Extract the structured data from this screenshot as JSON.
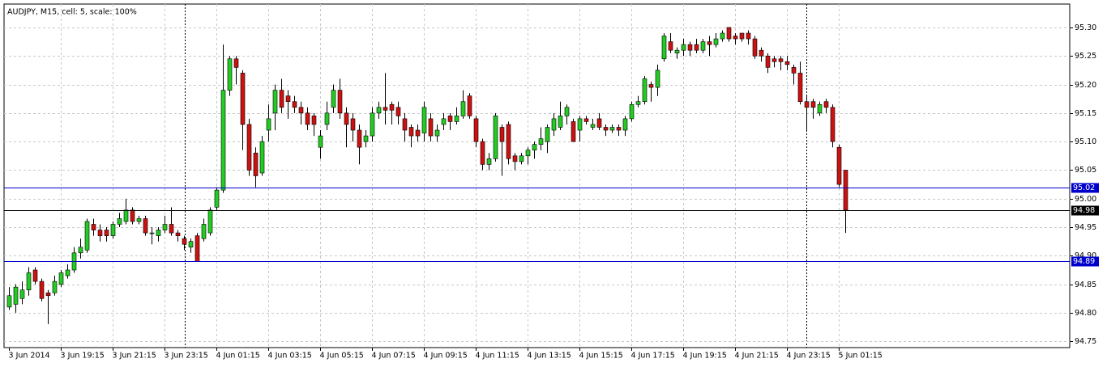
{
  "chart_data": {
    "type": "candlestick",
    "title": "AUDJPY, M15, cell: 5, scale: 100%",
    "categories": [
      "3 Jun 2014",
      null,
      null,
      null,
      null,
      null,
      null,
      null,
      "3 Jun 19:15",
      null,
      null,
      null,
      null,
      null,
      null,
      null,
      "3 Jun 21:15",
      null,
      null,
      null,
      null,
      null,
      null,
      null,
      "3 Jun 23:15",
      null,
      null,
      null,
      null,
      null,
      null,
      null,
      "4 Jun 01:15",
      null,
      null,
      null,
      null,
      null,
      null,
      null,
      "4 Jun 03:15",
      null,
      null,
      null,
      null,
      null,
      null,
      null,
      "4 Jun 05:15",
      null,
      null,
      null,
      null,
      null,
      null,
      null,
      "4 Jun 07:15",
      null,
      null,
      null,
      null,
      null,
      null,
      null,
      "4 Jun 09:15",
      null,
      null,
      null,
      null,
      null,
      null,
      null,
      "4 Jun 11:15",
      null,
      null,
      null,
      null,
      null,
      null,
      null,
      "4 Jun 13:15",
      null,
      null,
      null,
      null,
      null,
      null,
      null,
      "4 Jun 15:15",
      null,
      null,
      null,
      null,
      null,
      null,
      null,
      "4 Jun 17:15",
      null,
      null,
      null,
      null,
      null,
      null,
      null,
      "4 Jun 19:15",
      null,
      null,
      null,
      null,
      null,
      null,
      null,
      "4 Jun 21:15",
      null,
      null,
      null,
      null,
      null,
      null,
      null,
      "4 Jun 23:15",
      null,
      null,
      null,
      null,
      null,
      null,
      null,
      "5 Jun 01:15",
      null
    ],
    "open": [
      94.81,
      94.815,
      94.825,
      94.84,
      94.875,
      94.855,
      94.835,
      94.835,
      94.85,
      94.865,
      94.875,
      94.905,
      94.91,
      94.955,
      94.945,
      94.945,
      94.935,
      94.955,
      94.96,
      94.98,
      94.96,
      94.965,
      94.94,
      94.935,
      94.945,
      94.955,
      94.94,
      94.93,
      94.915,
      94.935,
      94.93,
      94.94,
      94.985,
      95.015,
      95.19,
      95.245,
      95.22,
      95.13,
      95.08,
      95.045,
      95.12,
      95.15,
      95.19,
      95.18,
      95.17,
      95.16,
      95.15,
      95.145,
      95.09,
      95.13,
      95.16,
      95.19,
      95.15,
      95.14,
      95.12,
      95.1,
      95.11,
      95.15,
      95.16,
      95.165,
      95.16,
      95.14,
      95.125,
      95.12,
      95.115,
      95.14,
      95.11,
      95.13,
      95.145,
      95.135,
      95.145,
      95.18,
      95.14,
      95.1,
      95.06,
      95.07,
      95.125,
      95.13,
      95.075,
      95.065,
      95.075,
      95.085,
      95.095,
      95.1,
      95.12,
      95.125,
      95.145,
      95.135,
      95.12,
      95.14,
      95.125,
      95.14,
      95.125,
      95.12,
      95.125,
      95.12,
      95.14,
      95.165,
      95.17,
      95.2,
      95.195,
      95.245,
      95.275,
      95.255,
      95.26,
      95.27,
      95.27,
      95.26,
      95.275,
      95.27,
      95.28,
      95.3,
      95.285,
      95.29,
      95.29,
      95.28,
      95.26,
      95.25,
      95.245,
      95.245,
      95.24,
      95.23,
      95.22,
      95.17,
      95.17,
      95.15,
      95.17,
      95.16,
      95.09,
      95.05
    ],
    "high": [
      94.845,
      94.85,
      94.855,
      94.88,
      94.88,
      94.86,
      94.84,
      94.865,
      94.875,
      94.885,
      94.915,
      94.93,
      94.965,
      94.965,
      94.955,
      94.95,
      94.96,
      94.975,
      95.0,
      94.985,
      94.97,
      94.97,
      94.95,
      94.95,
      94.97,
      94.985,
      94.945,
      94.935,
      94.93,
      94.94,
      94.965,
      94.985,
      95.02,
      95.27,
      95.25,
      95.25,
      95.225,
      95.14,
      95.09,
      95.11,
      95.165,
      95.2,
      95.21,
      95.19,
      95.18,
      95.17,
      95.16,
      95.15,
      95.12,
      95.17,
      95.2,
      95.21,
      95.16,
      95.15,
      95.13,
      95.12,
      95.16,
      95.17,
      95.22,
      95.17,
      95.17,
      95.15,
      95.13,
      95.13,
      95.17,
      95.15,
      95.13,
      95.15,
      95.15,
      95.16,
      95.19,
      95.185,
      95.145,
      95.105,
      95.08,
      95.15,
      95.13,
      95.135,
      95.08,
      95.08,
      95.09,
      95.1,
      95.125,
      95.13,
      95.15,
      95.17,
      95.165,
      95.14,
      95.145,
      95.145,
      95.14,
      95.15,
      95.13,
      95.13,
      95.13,
      95.145,
      95.17,
      95.18,
      95.215,
      95.205,
      95.235,
      95.29,
      95.29,
      95.265,
      95.28,
      95.275,
      95.28,
      95.28,
      95.285,
      95.29,
      95.295,
      95.3,
      95.29,
      95.29,
      95.295,
      95.285,
      95.265,
      95.255,
      95.25,
      95.25,
      95.25,
      95.235,
      95.24,
      95.18,
      95.175,
      95.17,
      95.175,
      95.165,
      95.095,
      95.05
    ],
    "low": [
      94.805,
      94.8,
      94.815,
      94.83,
      94.85,
      94.82,
      94.78,
      94.83,
      94.845,
      94.86,
      94.87,
      94.895,
      94.905,
      94.935,
      94.925,
      94.925,
      94.93,
      94.95,
      94.955,
      94.955,
      94.955,
      94.935,
      94.92,
      94.925,
      94.94,
      94.935,
      94.925,
      94.91,
      94.905,
      94.89,
      94.925,
      94.935,
      94.98,
      95.01,
      95.18,
      95.2,
      95.085,
      95.04,
      95.02,
      95.04,
      95.1,
      95.12,
      95.15,
      95.14,
      95.15,
      95.13,
      95.12,
      95.11,
      95.07,
      95.12,
      95.15,
      95.14,
      95.09,
      95.1,
      95.06,
      95.09,
      95.1,
      95.14,
      95.13,
      95.13,
      95.13,
      95.1,
      95.09,
      95.1,
      95.1,
      95.1,
      95.1,
      95.12,
      95.12,
      95.13,
      95.14,
      95.14,
      95.09,
      95.05,
      95.05,
      95.065,
      95.04,
      95.06,
      95.05,
      95.06,
      95.06,
      95.07,
      95.085,
      95.08,
      95.11,
      95.12,
      95.13,
      95.1,
      95.1,
      95.13,
      95.12,
      95.12,
      95.11,
      95.115,
      95.11,
      95.11,
      95.135,
      95.16,
      95.165,
      95.17,
      95.18,
      95.24,
      95.255,
      95.245,
      95.25,
      95.25,
      95.255,
      95.255,
      95.25,
      95.265,
      95.275,
      95.275,
      95.27,
      95.275,
      95.27,
      95.245,
      95.24,
      95.22,
      95.23,
      95.225,
      95.225,
      95.2,
      95.165,
      95.12,
      95.14,
      95.145,
      95.15,
      95.09,
      95.02,
      94.94
    ],
    "close": [
      94.83,
      94.845,
      94.84,
      94.87,
      94.855,
      94.825,
      94.83,
      94.855,
      94.87,
      94.875,
      94.905,
      94.915,
      94.96,
      94.945,
      94.935,
      94.935,
      94.955,
      94.965,
      94.98,
      94.96,
      94.965,
      94.94,
      94.94,
      94.945,
      94.955,
      94.94,
      94.935,
      94.92,
      94.925,
      94.89,
      94.955,
      94.98,
      95.015,
      95.19,
      95.245,
      95.23,
      95.13,
      95.05,
      95.04,
      95.1,
      95.14,
      95.19,
      95.16,
      95.17,
      95.16,
      95.15,
      95.13,
      95.13,
      95.11,
      95.15,
      95.19,
      95.15,
      95.13,
      95.12,
      95.09,
      95.11,
      95.15,
      95.16,
      95.155,
      95.155,
      95.145,
      95.12,
      95.11,
      95.11,
      95.16,
      95.11,
      95.12,
      95.14,
      95.135,
      95.145,
      95.17,
      95.145,
      95.1,
      95.06,
      95.07,
      95.145,
      95.1,
      95.07,
      95.065,
      95.075,
      95.085,
      95.095,
      95.105,
      95.125,
      95.14,
      95.145,
      95.16,
      95.1,
      95.14,
      95.135,
      95.13,
      95.125,
      95.12,
      95.125,
      95.12,
      95.14,
      95.165,
      95.17,
      95.21,
      95.195,
      95.225,
      95.285,
      95.26,
      95.26,
      95.27,
      95.26,
      95.26,
      95.275,
      95.27,
      95.28,
      95.29,
      95.28,
      95.28,
      95.28,
      95.28,
      95.25,
      95.25,
      95.23,
      95.24,
      95.24,
      95.235,
      95.22,
      95.17,
      95.16,
      95.16,
      95.165,
      95.16,
      95.1,
      95.025,
      94.98
    ],
    "up_color": "#22cc22",
    "down_color": "#cc1111",
    "ylim": [
      94.739,
      95.341
    ],
    "yticks": [
      {
        "value": 94.75,
        "label": "94.75"
      },
      {
        "value": 94.8,
        "label": "94.80"
      },
      {
        "value": 94.85,
        "label": "94.85"
      },
      {
        "value": 94.9,
        "label": "94.90"
      },
      {
        "value": 94.95,
        "label": "94.95"
      },
      {
        "value": 95.0,
        "label": "95.00"
      },
      {
        "value": 95.05,
        "label": "95.05"
      },
      {
        "value": 95.1,
        "label": "95.10"
      },
      {
        "value": 95.15,
        "label": "95.15"
      },
      {
        "value": 95.2,
        "label": "95.20"
      },
      {
        "value": 95.25,
        "label": "95.25"
      },
      {
        "value": 95.3,
        "label": "95.30"
      }
    ],
    "hlines": [
      {
        "value": 95.02,
        "color": "#0000cc"
      },
      {
        "value": 94.98,
        "color": "#000000"
      },
      {
        "value": 94.89,
        "color": "#0000cc"
      }
    ],
    "grid": true
  }
}
